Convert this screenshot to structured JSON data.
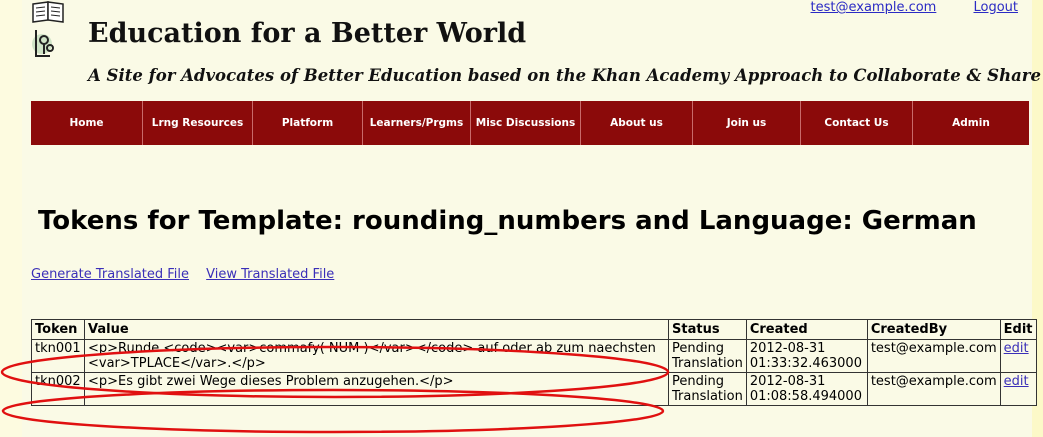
{
  "header": {
    "site_title": "Education for a Better World",
    "site_subtitle": "A Site for Advocates of Better Education based on the Khan Academy Approach to Collaborate & Share",
    "user_email": "test@example.com",
    "logout_label": "Logout"
  },
  "nav": {
    "items": [
      {
        "label": "Home"
      },
      {
        "label": "Lrng Resources"
      },
      {
        "label": "Platform"
      },
      {
        "label": "Learners/Prgms"
      },
      {
        "label": "Misc Discussions"
      },
      {
        "label": "About us"
      },
      {
        "label": "Join us"
      },
      {
        "label": "Contact Us"
      },
      {
        "label": "Admin"
      }
    ]
  },
  "main": {
    "page_title": "Tokens for Template: rounding_numbers and Language: German",
    "actions": {
      "generate_label": "Generate Translated File",
      "view_label": "View Translated File"
    },
    "table": {
      "headers": [
        "Token",
        "Value",
        "Status",
        "Created",
        "CreatedBy",
        "Edit"
      ],
      "rows": [
        {
          "token": "tkn001",
          "value": "<p>Runde <code><var>commafy( NUM )</var></code> auf oder ab zum naechsten <var>TPLACE</var>.</p>",
          "status": "Pending Translation",
          "created": "2012-08-31 01:33:32.463000",
          "created_by": "test@example.com",
          "edit": "edit"
        },
        {
          "token": "tkn002",
          "value": "<p>Es gibt zwei Wege dieses Problem anzugehen.</p>",
          "status": "Pending Translation",
          "created": "2012-08-31 01:08:58.494000",
          "created_by": "test@example.com",
          "edit": "edit"
        }
      ]
    }
  },
  "colors": {
    "nav_background": "#8b0a0a",
    "page_background": "#fafae6",
    "link": "#3a2fb8",
    "annotation_ellipse": "#e01010"
  }
}
